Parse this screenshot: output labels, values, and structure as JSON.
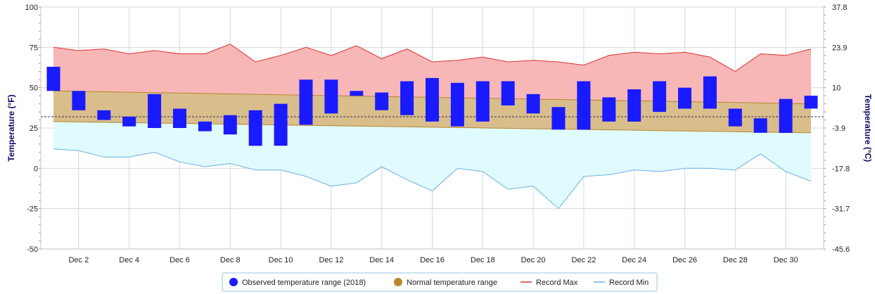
{
  "chart_data": {
    "type": "bar",
    "left_axis": {
      "label": "Temperature (°F)",
      "range": [
        -50,
        100
      ],
      "ticks": [
        -50,
        -25,
        0,
        25,
        50,
        75,
        100
      ]
    },
    "right_axis": {
      "label": "Temperature (°C)",
      "tick_labels": [
        "-45.6",
        "-31.7",
        "-17.8",
        "-3.9",
        "10",
        "23.9",
        "37.8"
      ]
    },
    "x_axis": {
      "days": [
        1,
        31
      ],
      "tick_days": [
        2,
        4,
        6,
        8,
        10,
        12,
        14,
        16,
        18,
        20,
        22,
        24,
        26,
        28,
        30
      ],
      "tick_labels": [
        "Dec 2",
        "Dec 4",
        "Dec 6",
        "Dec 8",
        "Dec 10",
        "Dec 12",
        "Dec 14",
        "Dec 16",
        "Dec 18",
        "Dec 20",
        "Dec 22",
        "Dec 24",
        "Dec 26",
        "Dec 28",
        "Dec 30"
      ]
    },
    "reference_line_f": 32,
    "grid": true,
    "legend_position": "bottom",
    "series": [
      {
        "name": "Observed temperature range (2018)",
        "type": "range-bar",
        "color": "#1a1aff",
        "low": [
          48,
          36,
          30,
          26,
          25,
          25,
          23,
          21,
          14,
          14,
          27,
          34,
          45,
          36,
          33,
          29,
          26,
          29,
          39,
          34,
          24,
          24,
          29,
          29,
          35,
          37,
          37,
          26,
          22,
          22,
          37
        ],
        "high": [
          63,
          48,
          36,
          32,
          46,
          37,
          29,
          33,
          36,
          40,
          55,
          55,
          48,
          47,
          54,
          56,
          53,
          54,
          54,
          46,
          38,
          54,
          44,
          49,
          54,
          50,
          57,
          37,
          31,
          43,
          45
        ]
      },
      {
        "name": "Normal temperature range",
        "type": "band",
        "color": "#b8862d",
        "low_start": 29,
        "low_end": 22,
        "high_start": 48,
        "high_end": 40
      },
      {
        "name": "Record Max",
        "type": "line",
        "color": "#e03030",
        "values": [
          75,
          73,
          74,
          71,
          73,
          71,
          71,
          77,
          66,
          70,
          75,
          70,
          76,
          68,
          74,
          66,
          67,
          69,
          66,
          67,
          66,
          64,
          70,
          72,
          71,
          72,
          69,
          60,
          71,
          70,
          74
        ]
      },
      {
        "name": "Record Min",
        "type": "line",
        "color": "#6aaee8",
        "values": [
          12,
          11,
          7,
          7,
          10,
          4,
          1,
          3,
          -1,
          -1,
          -5,
          -11,
          -9,
          1,
          -7,
          -14,
          0,
          -2,
          -13,
          -11,
          -25,
          -5,
          -4,
          -1,
          -2,
          0,
          0,
          -1,
          9,
          -2,
          -8
        ]
      }
    ]
  }
}
